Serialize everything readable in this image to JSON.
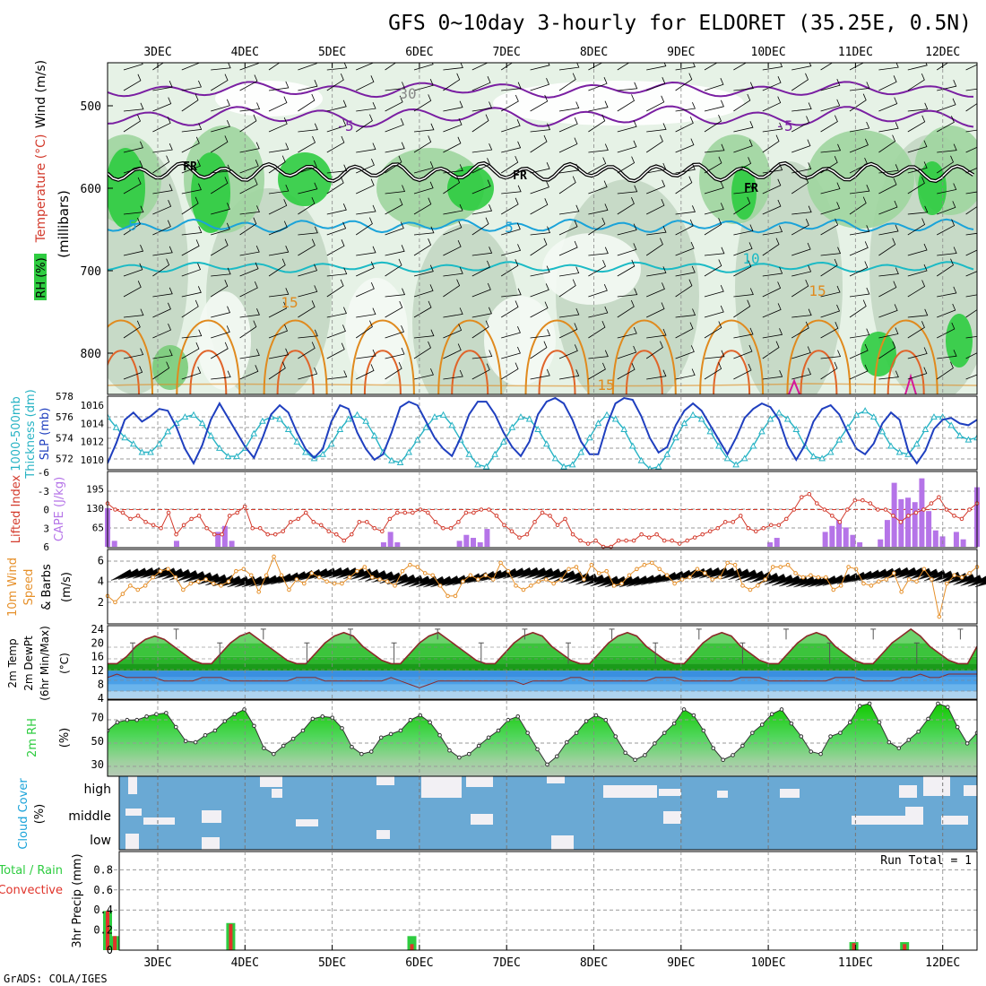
{
  "title": "GFS 0~10day 3-hourly for ELDORET (35.25E, 0.5N)",
  "footer": "GrADS: COLA/IGES",
  "date_labels": [
    "3DEC",
    "4DEC",
    "5DEC",
    "6DEC",
    "7DEC",
    "8DEC",
    "9DEC",
    "10DEC",
    "11DEC",
    "12DEC"
  ],
  "colors": {
    "rh_green": "#2ecc40",
    "rh_light": "#e6f2e6",
    "rh_mid": "#c2d8c2",
    "rh_dark": "#a5b8a5",
    "temp_purple": "#7a1fa2",
    "temp_cyan": "#1aa3d9",
    "temp_orange": "#e08a1e",
    "freezing": "#000000",
    "slp": "#1f3fbf",
    "thickness": "#27b3c4",
    "cape": "#b574e8",
    "lifted": "#d33a2c",
    "wind": "#e6902a",
    "cloud_blue": "#6aa9d4",
    "cloud_white": "#f2f0f4",
    "precip_total": "#2ecc40",
    "precip_conv": "#e0332a"
  },
  "panels": {
    "upper": {
      "ylabels": [
        "RH (%)",
        "Temperature (°C)",
        "Wind (m/s)"
      ],
      "unit": "(millibars)",
      "ticks": [
        "500",
        "600",
        "700",
        "800"
      ],
      "contour_labels": [
        "-5",
        "-5",
        "FR",
        "FR",
        "FR",
        "5",
        "5",
        "10",
        "15",
        "15",
        "15",
        "30"
      ]
    },
    "pressure": {
      "ylabel_left": [
        "1000-500mb",
        "Thickness (dm)"
      ],
      "ylabel_right": "SLP (mb)",
      "left_ticks": [
        "578",
        "576",
        "574",
        "572"
      ],
      "right_ticks": [
        "1016",
        "1014",
        "1012",
        "1010"
      ]
    },
    "stability": {
      "ylabel_left": "Lifted Index",
      "ylabel_right": "CAPE (J/kg)",
      "left_ticks": [
        "-6",
        "-3",
        "0",
        "3",
        "6"
      ],
      "right_ticks": [
        "195",
        "130",
        "65"
      ]
    },
    "wind10m": {
      "ylabel": [
        "10m Wind",
        "Speed",
        "& Barbs",
        "(m/s)"
      ],
      "ticks": [
        "6",
        "4",
        "2"
      ]
    },
    "temp2m": {
      "ylabel": [
        "2m Temp",
        "2m DewPt",
        "(6hr Min/Max)",
        "(°C)"
      ],
      "ticks": [
        "24",
        "20",
        "16",
        "12",
        "8",
        "4"
      ]
    },
    "rh2m": {
      "ylabel": [
        "2m RH",
        "(%)"
      ],
      "ticks": [
        "70",
        "50",
        "30"
      ]
    },
    "cloud": {
      "ylabel": [
        "Cloud Cover",
        "(%)"
      ],
      "levels": [
        "high",
        "middle",
        "low"
      ]
    },
    "precip": {
      "ylabel": [
        "Total / Rain",
        "Convective",
        "3hr Precip (mm)"
      ],
      "ticks": [
        "0.8",
        "0.6",
        "0.4",
        "0.2",
        "0"
      ],
      "run_total": "Run Total = 1"
    }
  },
  "chart_data": [
    {
      "type": "line",
      "name": "SLP",
      "unit": "mb",
      "x_start": "2DEC 18Z",
      "x_step_hours": 3,
      "ylim": [
        1009,
        1017
      ],
      "values": [
        1009.6,
        1011.8,
        1014.4,
        1015.2,
        1014.2,
        1014.8,
        1015.6,
        1015.4,
        1013.6,
        1011.2,
        1009.6,
        1011.6,
        1014.4,
        1016.2,
        1014.6,
        1013.0,
        1011.4,
        1010.2,
        1012.4,
        1015.0,
        1016.0,
        1015.2,
        1013.0,
        1011.2,
        1010.2,
        1011.2,
        1014.2,
        1016.0,
        1015.6,
        1013.0,
        1011.2,
        1010.0,
        1010.6,
        1013.0,
        1015.8,
        1016.4,
        1016.0,
        1014.2,
        1012.4,
        1011.2,
        1010.4,
        1012.4,
        1015.0,
        1016.4,
        1016.4,
        1015.0,
        1013.0,
        1011.4,
        1010.4,
        1012.0,
        1015.0,
        1016.4,
        1016.8,
        1016.2,
        1014.4,
        1012.0,
        1010.6,
        1010.6,
        1013.8,
        1016.2,
        1016.8,
        1016.6,
        1014.8,
        1012.4,
        1010.8,
        1011.4,
        1013.8,
        1015.4,
        1016.2,
        1015.4,
        1013.8,
        1012.2,
        1010.6,
        1012.4,
        1014.6,
        1015.6,
        1016.2,
        1015.8,
        1014.4,
        1011.6,
        1010.0,
        1011.6,
        1014.2,
        1015.6,
        1016.0,
        1015.0,
        1013.0,
        1011.2,
        1010.6,
        1011.8,
        1014.0,
        1015.2,
        1014.4,
        1011.0,
        1009.6,
        1011.0,
        1013.4,
        1014.4,
        1014.6,
        1014.0,
        1013.8,
        1014.4
      ]
    },
    {
      "type": "line",
      "name": "1000-500mb Thickness",
      "unit": "dm",
      "ylim": [
        571,
        578
      ],
      "values": [
        576.0,
        575.0,
        574.0,
        573.4,
        572.6,
        572.6,
        573.4,
        574.6,
        575.4,
        576.0,
        576.2,
        575.4,
        574.2,
        573.0,
        572.2,
        572.2,
        573.0,
        574.4,
        575.6,
        576.0,
        575.8,
        574.8,
        573.6,
        572.6,
        572.0,
        572.4,
        573.4,
        574.8,
        575.8,
        576.2,
        575.6,
        574.2,
        572.6,
        571.8,
        571.6,
        572.6,
        573.8,
        575.0,
        576.0,
        576.2,
        575.2,
        573.8,
        572.4,
        571.4,
        571.2,
        572.4,
        573.6,
        575.0,
        576.0,
        575.8,
        574.8,
        573.4,
        572.0,
        571.2,
        571.4,
        572.6,
        574.0,
        575.4,
        576.2,
        575.8,
        574.8,
        573.2,
        571.8,
        571.0,
        571.2,
        572.4,
        574.0,
        575.4,
        576.2,
        575.8,
        574.6,
        573.2,
        572.0,
        571.4,
        572.0,
        573.2,
        574.6,
        575.8,
        576.4,
        575.8,
        574.8,
        573.2,
        572.2,
        572.0,
        572.6,
        573.8,
        575.0,
        576.2,
        576.6,
        576.0,
        574.6,
        573.2,
        572.6,
        572.4,
        573.4,
        574.8,
        576.0,
        576.0,
        575.2,
        574.2,
        573.8,
        574.0
      ]
    },
    {
      "type": "bar",
      "name": "CAPE",
      "unit": "J/kg",
      "ylim": [
        0,
        250
      ],
      "values": [
        130,
        20,
        0,
        0,
        0,
        0,
        0,
        0,
        0,
        0,
        20,
        0,
        0,
        0,
        0,
        0,
        50,
        70,
        20,
        0,
        0,
        0,
        0,
        0,
        0,
        0,
        0,
        0,
        0,
        0,
        0,
        0,
        0,
        0,
        0,
        0,
        0,
        0,
        0,
        0,
        15,
        50,
        15,
        0,
        0,
        0,
        0,
        0,
        0,
        0,
        0,
        20,
        40,
        30,
        15,
        60,
        0,
        0,
        0,
        0,
        0,
        0,
        0,
        0,
        0,
        0,
        0,
        0,
        0,
        0,
        0,
        0,
        0,
        0,
        0,
        0,
        0,
        0,
        0,
        0,
        0,
        0,
        0,
        0,
        0,
        0,
        0,
        0,
        0,
        0,
        0,
        0,
        0,
        0,
        0,
        0,
        15,
        30,
        0,
        0,
        0,
        0,
        0,
        0,
        50,
        70,
        90,
        65,
        40,
        15,
        0,
        0,
        25,
        90,
        215,
        160,
        165,
        150,
        230,
        120,
        55,
        35,
        0,
        50,
        25,
        0,
        200
      ]
    },
    {
      "type": "line",
      "name": "Lifted Index",
      "ylim": [
        -6,
        6
      ],
      "values": [
        -1,
        0,
        0.5,
        1.5,
        1,
        2,
        2.5,
        3,
        0.5,
        4,
        2.5,
        1.5,
        1,
        3,
        4,
        4,
        1,
        0.5,
        -0.5,
        3,
        3,
        4,
        4,
        3.5,
        2,
        1.5,
        0.5,
        2,
        2.5,
        3.5,
        4,
        5,
        4,
        2,
        2,
        3,
        3.5,
        1.5,
        0.5,
        0.5,
        0.5,
        0,
        0.5,
        2,
        3,
        3,
        2,
        0.5,
        0.5,
        0,
        0,
        1,
        2.5,
        3.5,
        4.5,
        4,
        2,
        0.5,
        1,
        2.5,
        1.5,
        4,
        5,
        5.5,
        5,
        6,
        6,
        5,
        5,
        5,
        4,
        4.5,
        4,
        5,
        5,
        5.5,
        5,
        4.5,
        4,
        3.5,
        3,
        2,
        2,
        1,
        3,
        3.5,
        3,
        2.5,
        2.5,
        1.5,
        0,
        -2,
        -2.5,
        -1,
        0,
        1,
        2,
        0,
        -1.5,
        -1.5,
        -1,
        0,
        0,
        1,
        2,
        1,
        0.5,
        0,
        -1,
        -2,
        0,
        1,
        1.5,
        0,
        -1
      ]
    },
    {
      "type": "line",
      "name": "10m Wind Speed",
      "unit": "m/s",
      "ylim": [
        0,
        7
      ],
      "values": [
        2.6,
        2.0,
        2.8,
        3.6,
        3.2,
        3.6,
        4.4,
        5.0,
        5.2,
        4.4,
        3.2,
        3.8,
        4.0,
        4.2,
        3.8,
        3.6,
        4.0,
        5.0,
        5.2,
        4.6,
        3.0,
        4.6,
        6.4,
        4.6,
        3.2,
        4.2,
        3.8,
        4.8,
        4.4,
        4.0,
        3.8,
        3.8,
        4.4,
        5.0,
        5.4,
        4.4,
        4.2,
        4.0,
        3.6,
        5.0,
        5.6,
        5.4,
        4.8,
        4.6,
        3.6,
        2.6,
        2.6,
        4.0,
        4.6,
        4.2,
        4.6,
        4.2,
        5.8,
        5.0,
        3.6,
        3.2,
        3.6,
        4.0,
        4.2,
        3.8,
        4.2,
        5.2,
        5.4,
        4.2,
        5.6,
        4.8,
        5.0,
        3.6,
        3.8,
        4.6,
        5.2,
        5.6,
        5.8,
        5.2,
        4.6,
        3.8,
        4.2,
        4.4,
        5.2,
        4.8,
        4.2,
        4.4,
        5.8,
        5.6,
        3.6,
        3.2,
        3.6,
        4.2,
        5.4,
        5.4,
        5.6,
        4.8,
        4.4,
        4.6,
        4.4,
        4.4,
        3.2,
        3.6,
        5.4,
        5.2,
        3.8,
        3.6,
        4.0,
        4.2,
        4.8,
        3.0,
        4.2,
        4.0,
        5.2,
        4.2,
        0.6,
        3.8,
        4.6,
        4.4,
        4.8,
        5.4
      ]
    },
    {
      "type": "area",
      "name": "2m Temp",
      "unit": "°C",
      "ylim": [
        4,
        25
      ],
      "values": [
        14,
        14,
        16,
        19,
        21,
        22,
        21,
        19,
        17,
        15,
        14,
        14,
        17,
        20,
        22,
        23,
        21,
        19,
        17,
        15,
        14,
        14,
        17,
        20,
        22,
        23,
        22,
        19,
        17,
        15,
        14,
        14,
        17,
        20,
        22,
        23,
        21,
        19,
        17,
        15,
        14,
        14,
        17,
        20,
        22,
        23,
        22,
        19,
        17,
        15,
        14,
        14,
        17,
        20,
        22,
        23,
        22,
        19,
        17,
        15,
        14,
        14,
        17,
        20,
        22,
        23,
        22,
        19,
        17,
        15,
        14,
        14,
        17,
        20,
        22,
        23,
        22,
        19,
        17,
        15,
        14,
        14,
        17,
        20,
        22,
        24,
        22,
        19,
        17,
        15,
        14,
        14,
        19
      ]
    },
    {
      "type": "line",
      "name": "2m DewPt",
      "unit": "°C",
      "ylim": [
        4,
        25
      ],
      "values": [
        10,
        11,
        10,
        10,
        10,
        10,
        9,
        9,
        9,
        9,
        10,
        10,
        10,
        9,
        9,
        9,
        9,
        9,
        9,
        9,
        10,
        10,
        10,
        9,
        9,
        9,
        9,
        9,
        9,
        9,
        10,
        9,
        8,
        7,
        8,
        9,
        9,
        9,
        9,
        9,
        9,
        9,
        9,
        9,
        8,
        9,
        9,
        9,
        9,
        10,
        10,
        9,
        9,
        9,
        9,
        9,
        9,
        9,
        10,
        10,
        10,
        9,
        9,
        9,
        9,
        9,
        9,
        10,
        10,
        10,
        9,
        9,
        9,
        9,
        9,
        9,
        9,
        10,
        10,
        10,
        9,
        9,
        9,
        9,
        10,
        10,
        11,
        10,
        10,
        11,
        11,
        11,
        11
      ]
    },
    {
      "type": "area",
      "name": "2m RH",
      "unit": "%",
      "ylim": [
        20,
        85
      ],
      "values": [
        59,
        66,
        68,
        68,
        71,
        73,
        74,
        62,
        50,
        49,
        55,
        59,
        67,
        73,
        77,
        63,
        44,
        39,
        46,
        52,
        59,
        69,
        71,
        70,
        61,
        45,
        39,
        41,
        53,
        56,
        59,
        68,
        72,
        66,
        55,
        42,
        36,
        39,
        46,
        53,
        59,
        68,
        71,
        57,
        43,
        30,
        37,
        49,
        57,
        67,
        72,
        68,
        54,
        40,
        34,
        38,
        48,
        57,
        65,
        77,
        72,
        59,
        44,
        34,
        38,
        46,
        57,
        64,
        73,
        77,
        65,
        54,
        41,
        39,
        54,
        57,
        66,
        80,
        82,
        66,
        49,
        44,
        51,
        58,
        69,
        82,
        79,
        62,
        48,
        57
      ]
    },
    {
      "type": "bar",
      "name": "3hr Precip",
      "unit": "mm",
      "ylim": [
        0,
        1
      ],
      "series": [
        {
          "name": "Total / Rain",
          "values": [
            0.39,
            0.14,
            0,
            0,
            0,
            0,
            0,
            0,
            0,
            0,
            0,
            0,
            0,
            0,
            0,
            0,
            0,
            0.27,
            0,
            0,
            0,
            0,
            0,
            0,
            0,
            0,
            0,
            0,
            0,
            0,
            0,
            0,
            0,
            0,
            0,
            0,
            0,
            0,
            0,
            0,
            0,
            0,
            0.14,
            0,
            0,
            0,
            0,
            0,
            0,
            0,
            0,
            0,
            0,
            0,
            0,
            0,
            0,
            0,
            0,
            0,
            0,
            0,
            0,
            0,
            0,
            0,
            0,
            0,
            0,
            0,
            0,
            0,
            0,
            0,
            0,
            0,
            0,
            0,
            0,
            0,
            0,
            0,
            0,
            0,
            0,
            0,
            0,
            0,
            0,
            0,
            0,
            0,
            0,
            0,
            0,
            0,
            0,
            0,
            0,
            0,
            0,
            0,
            0,
            0.08,
            0,
            0,
            0,
            0,
            0,
            0,
            0.08,
            0,
            0,
            0,
            0,
            0,
            0,
            0,
            0,
            0,
            0
          ]
        },
        {
          "name": "Convective",
          "values": [
            0.39,
            0.14,
            0,
            0,
            0,
            0,
            0,
            0,
            0,
            0,
            0,
            0,
            0,
            0,
            0,
            0,
            0,
            0.26,
            0,
            0,
            0,
            0,
            0,
            0,
            0,
            0,
            0,
            0,
            0,
            0,
            0,
            0,
            0,
            0,
            0,
            0,
            0,
            0,
            0,
            0,
            0,
            0,
            0.06,
            0,
            0,
            0,
            0,
            0,
            0,
            0,
            0,
            0,
            0,
            0,
            0,
            0,
            0,
            0,
            0,
            0,
            0,
            0,
            0,
            0,
            0,
            0,
            0,
            0,
            0,
            0,
            0,
            0,
            0,
            0,
            0,
            0,
            0,
            0,
            0,
            0,
            0,
            0,
            0,
            0,
            0,
            0,
            0,
            0,
            0,
            0,
            0,
            0,
            0,
            0,
            0,
            0,
            0,
            0,
            0,
            0,
            0,
            0,
            0,
            0.07,
            0,
            0,
            0,
            0,
            0,
            0,
            0.06,
            0,
            0,
            0,
            0,
            0,
            0,
            0,
            0,
            0,
            0
          ]
        }
      ]
    }
  ]
}
